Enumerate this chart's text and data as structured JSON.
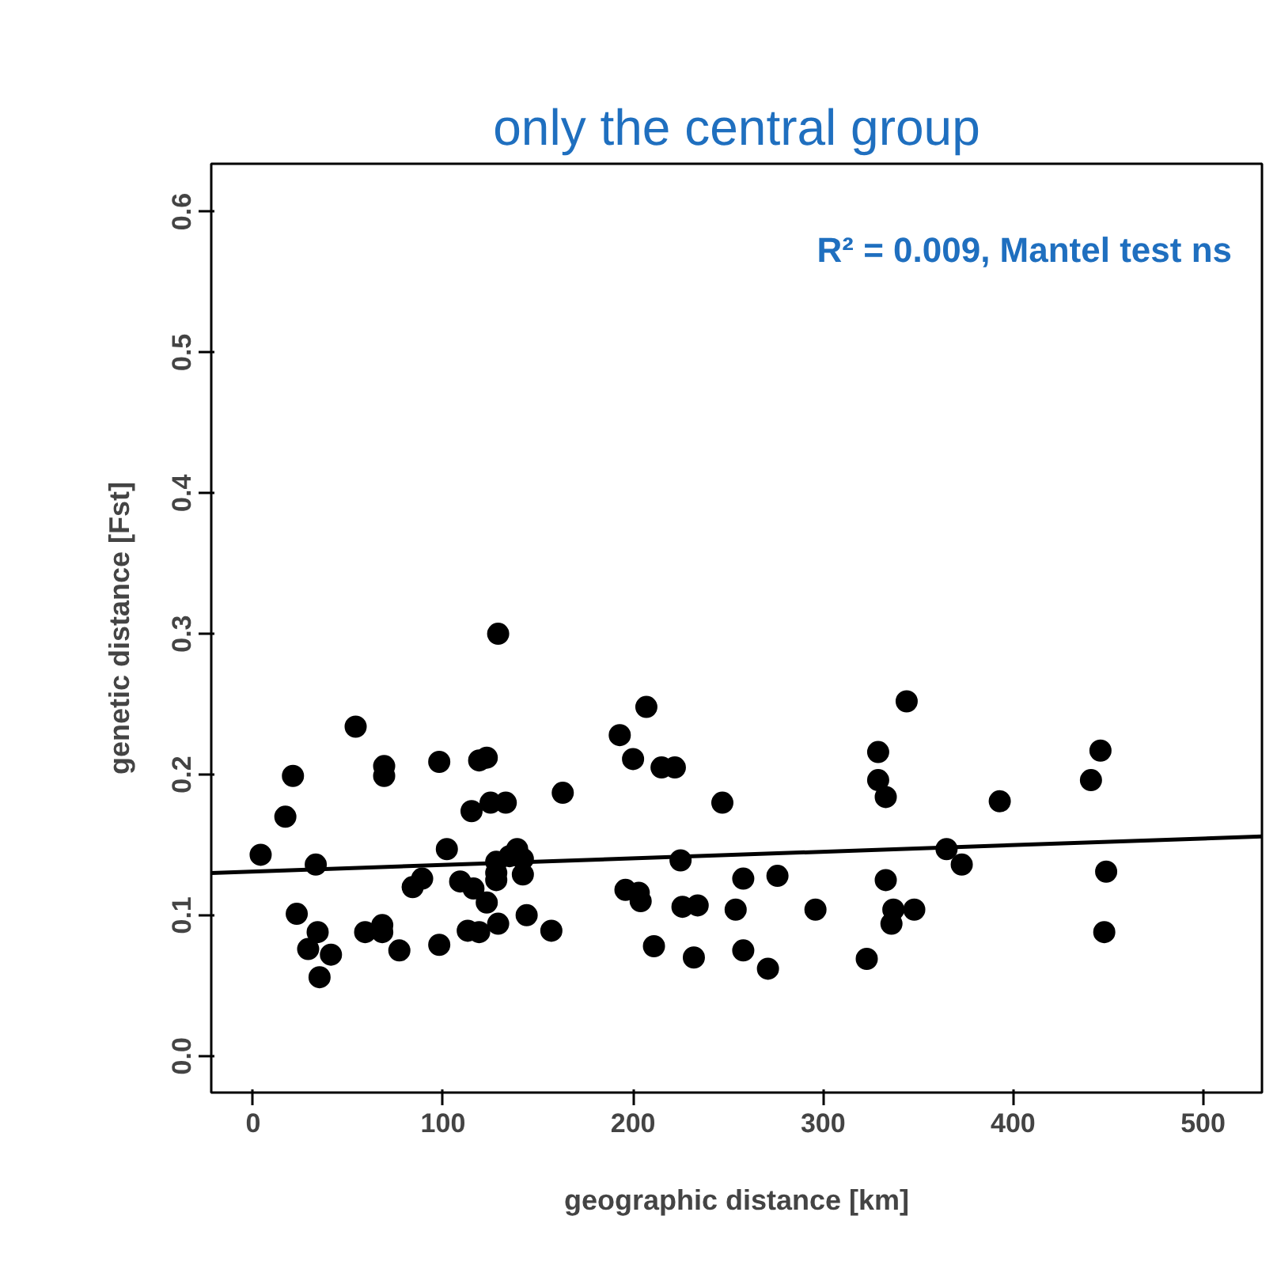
{
  "chart_data": {
    "type": "scatter",
    "title": "only the central group",
    "xlabel": "geographic distance [km]",
    "ylabel": "genetic distance [Fst]",
    "annotations": [
      "R² = 0.009, Mantel test ns"
    ],
    "xlim": [
      -22,
      531
    ],
    "ylim": [
      -0.026,
      0.634
    ],
    "xticks": [
      0,
      100,
      200,
      300,
      400,
      500
    ],
    "yticks": [
      {
        "value": 0,
        "label": "0.0"
      },
      0.1,
      0.2,
      0.3,
      0.4,
      0.5,
      0.6
    ],
    "grid": false,
    "marker": "circle",
    "series": [
      {
        "color": "#000000",
        "x": [
          4,
          17,
          21,
          23,
          29,
          33,
          34,
          35,
          41,
          54,
          59,
          68,
          68,
          69,
          69,
          77,
          84,
          89,
          98,
          98,
          102,
          109,
          113,
          115,
          116,
          119,
          119,
          123,
          123,
          125,
          128,
          128,
          128,
          129,
          129,
          133,
          135,
          139,
          142,
          142,
          144,
          157,
          163,
          193,
          196,
          200,
          203,
          204,
          207,
          211,
          215,
          222,
          225,
          226,
          232,
          234,
          247,
          254,
          258,
          258,
          271,
          276,
          296,
          323,
          329,
          329,
          333,
          333,
          336,
          337,
          344,
          348,
          365,
          373,
          393,
          441,
          446,
          448,
          449
        ],
        "values": [
          0.143,
          0.17,
          0.199,
          0.101,
          0.076,
          0.136,
          0.088,
          0.056,
          0.072,
          0.234,
          0.088,
          0.093,
          0.088,
          0.206,
          0.199,
          0.075,
          0.12,
          0.126,
          0.079,
          0.209,
          0.147,
          0.124,
          0.089,
          0.174,
          0.119,
          0.21,
          0.088,
          0.212,
          0.109,
          0.18,
          0.138,
          0.13,
          0.125,
          0.094,
          0.3,
          0.18,
          0.142,
          0.147,
          0.129,
          0.14,
          0.1,
          0.089,
          0.187,
          0.228,
          0.118,
          0.211,
          0.116,
          0.11,
          0.248,
          0.078,
          0.205,
          0.205,
          0.139,
          0.106,
          0.07,
          0.107,
          0.18,
          0.104,
          0.126,
          0.075,
          0.062,
          0.128,
          0.104,
          0.069,
          0.196,
          0.216,
          0.184,
          0.125,
          0.094,
          0.104,
          0.252,
          0.104,
          0.147,
          0.136,
          0.181,
          0.196,
          0.217,
          0.088,
          0.131
        ]
      },
      {
        "type": "line",
        "color": "#000000",
        "marker": "none",
        "x": [
          -22,
          531
        ],
        "values": [
          0.13,
          0.156
        ]
      }
    ]
  }
}
